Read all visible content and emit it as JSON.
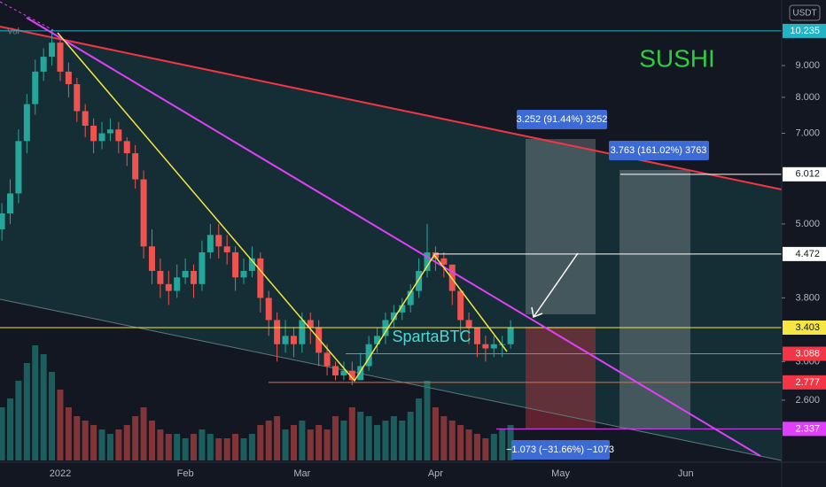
{
  "chart_data": {
    "type": "candlestick",
    "log_scale": true,
    "ylim": [
      2.065,
      11.48
    ],
    "yticks": [
      {
        "value": 9,
        "label": "9.000"
      },
      {
        "value": 8,
        "label": "8.000"
      },
      {
        "value": 7,
        "label": "7.000"
      },
      {
        "value": 5,
        "label": "5.000"
      },
      {
        "value": 3.8,
        "label": "3.800"
      },
      {
        "value": 3,
        "label": "3.000"
      },
      {
        "value": 2.6,
        "label": "2.600"
      }
    ],
    "up_color": "#26a69a",
    "down_color": "#ef5350",
    "categories": [
      null,
      null,
      null,
      null,
      null,
      null,
      null,
      "2022",
      null,
      null,
      null,
      null,
      null,
      null,
      null,
      null,
      null,
      null,
      null,
      null,
      null,
      null,
      "Feb",
      null,
      null,
      null,
      null,
      null,
      null,
      null,
      null,
      null,
      null,
      null,
      null,
      null,
      "Mar",
      null,
      null,
      null,
      null,
      null,
      null,
      null,
      null,
      null,
      null,
      null,
      null,
      null,
      null,
      null,
      "Apr",
      null,
      null,
      null,
      null,
      null,
      null,
      null,
      null,
      null,
      null,
      null,
      null,
      null,
      null,
      "May",
      null,
      null,
      null,
      null,
      null,
      null,
      null,
      null,
      null,
      null,
      null,
      null,
      null,
      null,
      "Jun",
      null
    ],
    "open": [
      4.9,
      5.2,
      5.6,
      6.8,
      7.8,
      8.8,
      9.3,
      9.8,
      8.8,
      8.4,
      7.6,
      7.2,
      6.8,
      7.0,
      7.1,
      6.8,
      6.5,
      5.9,
      4.6,
      4.2,
      4.0,
      3.9,
      4.1,
      4.2,
      4.0,
      4.5,
      4.8,
      4.6,
      4.5,
      4.1,
      4.2,
      4.4,
      3.8,
      3.5,
      3.2,
      3.3,
      3.2,
      3.5,
      3.4,
      3.1,
      2.95,
      2.85,
      2.9,
      2.8,
      2.95,
      3.2,
      3.3,
      3.5,
      3.6,
      3.7,
      3.9,
      4.2,
      4.5,
      4.4,
      4.3,
      3.9,
      3.5,
      3.4,
      3.2,
      3.15,
      3.2,
      3.2,
      null,
      null,
      null,
      null,
      null,
      null,
      null,
      null,
      null,
      null,
      null,
      null,
      null,
      null,
      null,
      null,
      null,
      null,
      null,
      null,
      null,
      null
    ],
    "high": [
      5.4,
      5.9,
      7.1,
      8.1,
      9.2,
      9.6,
      10.3,
      10.0,
      9.1,
      8.6,
      7.8,
      7.4,
      7.3,
      7.4,
      7.3,
      6.9,
      6.7,
      6.1,
      4.9,
      4.4,
      4.2,
      4.3,
      4.4,
      4.3,
      4.7,
      5.0,
      5.0,
      4.8,
      4.6,
      4.4,
      4.6,
      4.5,
      3.9,
      3.6,
      3.5,
      3.4,
      3.6,
      3.6,
      3.5,
      3.2,
      3.0,
      3.0,
      3.0,
      3.1,
      3.3,
      3.4,
      3.6,
      3.7,
      3.8,
      4.0,
      4.4,
      5.0,
      4.6,
      4.5,
      4.3,
      3.9,
      3.6,
      3.4,
      3.3,
      3.3,
      3.3,
      3.5,
      null,
      null,
      null,
      null,
      null,
      null,
      null,
      null,
      null,
      null,
      null,
      null,
      null,
      null,
      null,
      null,
      null,
      null,
      null,
      null,
      null,
      null
    ],
    "low": [
      4.7,
      5.0,
      5.4,
      6.5,
      7.5,
      8.5,
      9.0,
      8.5,
      8.0,
      7.3,
      6.9,
      6.5,
      6.6,
      6.8,
      6.5,
      6.2,
      5.7,
      4.4,
      4.0,
      3.8,
      3.7,
      3.8,
      4.0,
      3.8,
      3.9,
      4.4,
      4.4,
      4.3,
      3.9,
      4.0,
      4.1,
      3.6,
      3.3,
      3.0,
      3.1,
      3.05,
      3.1,
      3.2,
      2.95,
      2.85,
      2.8,
      2.8,
      2.75,
      2.8,
      2.9,
      3.1,
      3.2,
      3.4,
      3.5,
      3.6,
      3.8,
      4.1,
      4.2,
      4.1,
      3.7,
      3.3,
      3.2,
      3.05,
      3.0,
      3.05,
      3.05,
      3.15,
      null,
      null,
      null,
      null,
      null,
      null,
      null,
      null,
      null,
      null,
      null,
      null,
      null,
      null,
      null,
      null,
      null,
      null,
      null,
      null,
      null,
      null
    ],
    "close": [
      5.2,
      5.6,
      6.8,
      7.8,
      8.8,
      9.3,
      9.8,
      8.8,
      8.4,
      7.6,
      7.2,
      6.8,
      7.0,
      7.1,
      6.8,
      6.5,
      5.9,
      4.6,
      4.2,
      4.0,
      3.9,
      4.1,
      4.2,
      4.0,
      4.5,
      4.8,
      4.6,
      4.5,
      4.1,
      4.2,
      4.4,
      3.8,
      3.5,
      3.2,
      3.3,
      3.2,
      3.5,
      3.4,
      3.1,
      2.95,
      2.85,
      2.9,
      2.8,
      2.95,
      3.2,
      3.3,
      3.5,
      3.6,
      3.7,
      3.9,
      4.2,
      4.5,
      4.4,
      4.3,
      3.9,
      3.5,
      3.4,
      3.2,
      3.15,
      3.2,
      3.2,
      3.4,
      null,
      null,
      null,
      null,
      null,
      null,
      null,
      null,
      null,
      null,
      null,
      null,
      null,
      null,
      null,
      null,
      null,
      null,
      null,
      null,
      null,
      null
    ],
    "volume": [
      60,
      70,
      90,
      110,
      130,
      120,
      100,
      80,
      60,
      50,
      45,
      40,
      35,
      30,
      35,
      40,
      50,
      60,
      45,
      35,
      30,
      30,
      25,
      30,
      35,
      30,
      25,
      25,
      30,
      25,
      30,
      40,
      45,
      50,
      35,
      40,
      45,
      35,
      40,
      35,
      50,
      45,
      60,
      55,
      50,
      40,
      45,
      50,
      45,
      55,
      70,
      90,
      60,
      50,
      45,
      40,
      35,
      30,
      25,
      30,
      35,
      40,
      null,
      null,
      null,
      null,
      null,
      null,
      null,
      null,
      null,
      null,
      null,
      null,
      null,
      null,
      null,
      null,
      null,
      null,
      null,
      null,
      null,
      null
    ],
    "levels": [
      {
        "value": 10.235,
        "color": "#22b3c4",
        "text_color": "#ffffff"
      },
      {
        "value": 6.012,
        "color": "#ffffff",
        "text_color": "#131722"
      },
      {
        "value": 4.472,
        "color": "#ffffff",
        "text_color": "#131722"
      },
      {
        "value": 3.403,
        "color": "#f5e642",
        "text_color": "#131722"
      },
      {
        "value": 3.088,
        "color": "#f23645",
        "text_color": "#ffffff"
      },
      {
        "value": 2.777,
        "color": "#f23645",
        "text_color": "#ffffff"
      },
      {
        "value": 2.337,
        "color": "#e040fb",
        "text_color": "#ffffff"
      }
    ],
    "annotations": {
      "title": "SUSHI",
      "author": "SpartaBTC",
      "currency": "USDT",
      "volume_label": "Vol",
      "position_1": "3.252 (91.44%) 3252",
      "position_2": "3.763 (161.02%) 3763",
      "position_3": "−1.073 (−31.66%) −1073"
    }
  }
}
